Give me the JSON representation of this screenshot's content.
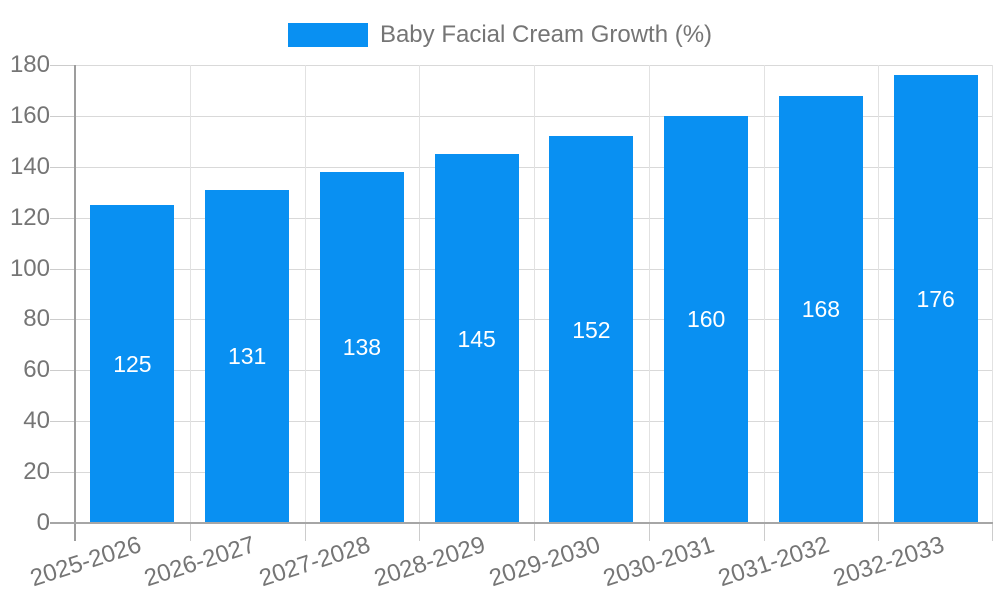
{
  "chart_data": {
    "type": "bar",
    "title": "Baby Facial Cream Growth (%)",
    "legend": [
      "Baby Facial Cream Growth (%)"
    ],
    "legend_position": "top",
    "categories": [
      "2025-2026",
      "2026-2027",
      "2027-2028",
      "2028-2029",
      "2029-2030",
      "2030-2031",
      "2031-2032",
      "2032-2033"
    ],
    "values": [
      125,
      131,
      138,
      145,
      152,
      160,
      168,
      176
    ],
    "bar_value_labels": [
      "125",
      "131",
      "138",
      "145",
      "152",
      "160",
      "168",
      "176"
    ],
    "xlabel": "",
    "ylabel": "",
    "ylim": [
      0,
      180
    ],
    "yticks": [
      0,
      20,
      40,
      60,
      80,
      100,
      120,
      140,
      160,
      180
    ],
    "grid": true,
    "x_label_rotation_deg": -18,
    "bar_color": "#0990f2",
    "bar_label_color": "#ffffff",
    "axis_text_color": "#757575",
    "gridline_color": "#d9d9d9",
    "axis_line_color": "#9d9d9d"
  }
}
